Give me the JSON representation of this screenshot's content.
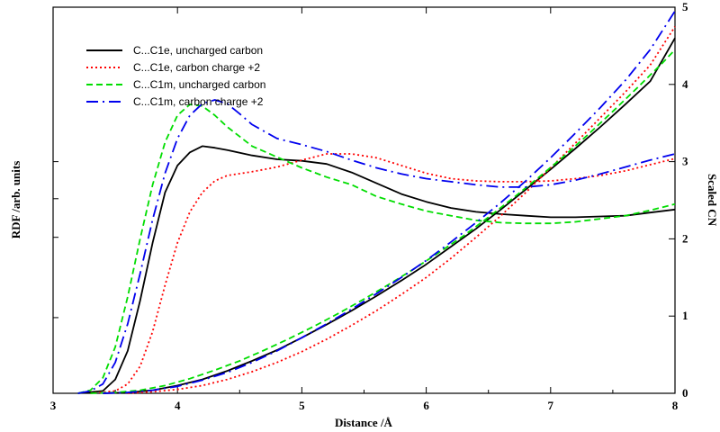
{
  "chart_data": {
    "type": "line",
    "xlabel": "Distance /Å",
    "ylabel": "RDF /arb. units",
    "y2label": "Scaled CN",
    "xlim": [
      3,
      8
    ],
    "ylim": [
      0,
      5
    ],
    "y2lim": [
      0,
      5
    ],
    "x_ticks": [
      "3",
      "4",
      "5",
      "6",
      "7",
      "8"
    ],
    "y2_ticks": [
      "0",
      "1",
      "2",
      "3",
      "4",
      "5"
    ],
    "grid": false,
    "legend_position": "top-left",
    "series": [
      {
        "name": "C...C1e, uncharged carbon",
        "color": "#000000",
        "dash": "solid",
        "rdf": [
          [
            3.2,
            0
          ],
          [
            3.4,
            0.03
          ],
          [
            3.5,
            0.18
          ],
          [
            3.6,
            0.55
          ],
          [
            3.7,
            1.2
          ],
          [
            3.8,
            1.95
          ],
          [
            3.9,
            2.6
          ],
          [
            4.0,
            2.95
          ],
          [
            4.1,
            3.12
          ],
          [
            4.2,
            3.2
          ],
          [
            4.3,
            3.18
          ],
          [
            4.4,
            3.15
          ],
          [
            4.6,
            3.08
          ],
          [
            4.8,
            3.03
          ],
          [
            5.0,
            3.01
          ],
          [
            5.2,
            2.97
          ],
          [
            5.4,
            2.86
          ],
          [
            5.6,
            2.72
          ],
          [
            5.8,
            2.58
          ],
          [
            6.0,
            2.48
          ],
          [
            6.2,
            2.4
          ],
          [
            6.4,
            2.35
          ],
          [
            6.6,
            2.32
          ],
          [
            6.8,
            2.3
          ],
          [
            7.0,
            2.28
          ],
          [
            7.2,
            2.28
          ],
          [
            7.4,
            2.29
          ],
          [
            7.6,
            2.3
          ],
          [
            7.8,
            2.34
          ],
          [
            8.0,
            2.38
          ]
        ],
        "cn": [
          [
            3.4,
            0
          ],
          [
            3.6,
            0.01
          ],
          [
            3.8,
            0.04
          ],
          [
            4.0,
            0.1
          ],
          [
            4.2,
            0.18
          ],
          [
            4.4,
            0.29
          ],
          [
            4.6,
            0.42
          ],
          [
            4.8,
            0.56
          ],
          [
            5.0,
            0.72
          ],
          [
            5.2,
            0.89
          ],
          [
            5.4,
            1.07
          ],
          [
            5.6,
            1.26
          ],
          [
            5.8,
            1.46
          ],
          [
            6.0,
            1.67
          ],
          [
            6.2,
            1.9
          ],
          [
            6.4,
            2.13
          ],
          [
            6.6,
            2.38
          ],
          [
            6.8,
            2.64
          ],
          [
            7.0,
            2.9
          ],
          [
            7.2,
            3.17
          ],
          [
            7.4,
            3.45
          ],
          [
            7.6,
            3.74
          ],
          [
            7.8,
            4.04
          ],
          [
            8.0,
            4.6
          ]
        ]
      },
      {
        "name": "C...C1e, carbon charge +2",
        "color": "#ff0000",
        "dash": "dotted",
        "rdf": [
          [
            3.3,
            0
          ],
          [
            3.5,
            0.03
          ],
          [
            3.6,
            0.12
          ],
          [
            3.7,
            0.35
          ],
          [
            3.8,
            0.8
          ],
          [
            3.9,
            1.4
          ],
          [
            4.0,
            1.95
          ],
          [
            4.1,
            2.35
          ],
          [
            4.2,
            2.6
          ],
          [
            4.3,
            2.75
          ],
          [
            4.4,
            2.82
          ],
          [
            4.6,
            2.87
          ],
          [
            4.8,
            2.93
          ],
          [
            5.0,
            3.02
          ],
          [
            5.2,
            3.1
          ],
          [
            5.4,
            3.1
          ],
          [
            5.6,
            3.05
          ],
          [
            5.8,
            2.95
          ],
          [
            6.0,
            2.85
          ],
          [
            6.2,
            2.78
          ],
          [
            6.4,
            2.75
          ],
          [
            6.6,
            2.74
          ],
          [
            6.8,
            2.74
          ],
          [
            7.0,
            2.75
          ],
          [
            7.2,
            2.78
          ],
          [
            7.4,
            2.82
          ],
          [
            7.6,
            2.88
          ],
          [
            7.8,
            2.96
          ],
          [
            8.0,
            3.04
          ]
        ],
        "cn": [
          [
            3.6,
            0
          ],
          [
            3.8,
            0.02
          ],
          [
            4.0,
            0.05
          ],
          [
            4.2,
            0.1
          ],
          [
            4.4,
            0.18
          ],
          [
            4.6,
            0.28
          ],
          [
            4.8,
            0.4
          ],
          [
            5.0,
            0.54
          ],
          [
            5.2,
            0.7
          ],
          [
            5.4,
            0.88
          ],
          [
            5.6,
            1.07
          ],
          [
            5.8,
            1.28
          ],
          [
            6.0,
            1.5
          ],
          [
            6.2,
            1.75
          ],
          [
            6.4,
            2.02
          ],
          [
            6.6,
            2.3
          ],
          [
            6.8,
            2.6
          ],
          [
            7.0,
            2.92
          ],
          [
            7.2,
            3.24
          ],
          [
            7.4,
            3.57
          ],
          [
            7.6,
            3.9
          ],
          [
            7.8,
            4.25
          ],
          [
            8.0,
            4.75
          ]
        ]
      },
      {
        "name": "C...C1m, uncharged carbon",
        "color": "#00dd00",
        "dash": "dashed",
        "rdf": [
          [
            3.2,
            0
          ],
          [
            3.3,
            0.04
          ],
          [
            3.4,
            0.2
          ],
          [
            3.5,
            0.6
          ],
          [
            3.6,
            1.25
          ],
          [
            3.7,
            2.0
          ],
          [
            3.8,
            2.7
          ],
          [
            3.9,
            3.25
          ],
          [
            4.0,
            3.6
          ],
          [
            4.1,
            3.74
          ],
          [
            4.2,
            3.72
          ],
          [
            4.3,
            3.6
          ],
          [
            4.4,
            3.45
          ],
          [
            4.6,
            3.2
          ],
          [
            4.8,
            3.06
          ],
          [
            5.0,
            2.92
          ],
          [
            5.2,
            2.8
          ],
          [
            5.4,
            2.7
          ],
          [
            5.6,
            2.55
          ],
          [
            5.8,
            2.45
          ],
          [
            6.0,
            2.36
          ],
          [
            6.2,
            2.3
          ],
          [
            6.4,
            2.24
          ],
          [
            6.6,
            2.21
          ],
          [
            6.8,
            2.2
          ],
          [
            7.0,
            2.2
          ],
          [
            7.2,
            2.22
          ],
          [
            7.4,
            2.26
          ],
          [
            7.6,
            2.3
          ],
          [
            7.8,
            2.37
          ],
          [
            8.0,
            2.45
          ]
        ],
        "cn": [
          [
            3.3,
            0
          ],
          [
            3.5,
            0.01
          ],
          [
            3.7,
            0.04
          ],
          [
            3.9,
            0.1
          ],
          [
            4.1,
            0.19
          ],
          [
            4.3,
            0.3
          ],
          [
            4.5,
            0.42
          ],
          [
            4.7,
            0.56
          ],
          [
            4.9,
            0.71
          ],
          [
            5.1,
            0.87
          ],
          [
            5.3,
            1.04
          ],
          [
            5.5,
            1.22
          ],
          [
            5.7,
            1.41
          ],
          [
            5.9,
            1.61
          ],
          [
            6.1,
            1.82
          ],
          [
            6.3,
            2.04
          ],
          [
            6.5,
            2.28
          ],
          [
            6.7,
            2.53
          ],
          [
            6.9,
            2.79
          ],
          [
            7.1,
            3.06
          ],
          [
            7.3,
            3.35
          ],
          [
            7.5,
            3.65
          ],
          [
            7.7,
            3.96
          ],
          [
            7.9,
            4.28
          ],
          [
            8.0,
            4.45
          ]
        ]
      },
      {
        "name": "C...C1m, carbon charge +2",
        "color": "#0000ee",
        "dash": "longdash",
        "rdf": [
          [
            3.2,
            0
          ],
          [
            3.3,
            0.03
          ],
          [
            3.4,
            0.12
          ],
          [
            3.5,
            0.4
          ],
          [
            3.6,
            0.9
          ],
          [
            3.7,
            1.55
          ],
          [
            3.8,
            2.25
          ],
          [
            3.9,
            2.85
          ],
          [
            4.0,
            3.3
          ],
          [
            4.1,
            3.6
          ],
          [
            4.2,
            3.75
          ],
          [
            4.3,
            3.8
          ],
          [
            4.4,
            3.75
          ],
          [
            4.5,
            3.62
          ],
          [
            4.6,
            3.48
          ],
          [
            4.8,
            3.3
          ],
          [
            5.0,
            3.22
          ],
          [
            5.2,
            3.13
          ],
          [
            5.4,
            3.02
          ],
          [
            5.6,
            2.92
          ],
          [
            5.8,
            2.84
          ],
          [
            6.0,
            2.78
          ],
          [
            6.2,
            2.74
          ],
          [
            6.4,
            2.7
          ],
          [
            6.6,
            2.67
          ],
          [
            6.8,
            2.67
          ],
          [
            7.0,
            2.7
          ],
          [
            7.2,
            2.76
          ],
          [
            7.4,
            2.84
          ],
          [
            7.6,
            2.93
          ],
          [
            7.8,
            3.02
          ],
          [
            8.0,
            3.1
          ]
        ],
        "cn": [
          [
            3.4,
            0
          ],
          [
            3.6,
            0.01
          ],
          [
            3.8,
            0.04
          ],
          [
            4.0,
            0.09
          ],
          [
            4.2,
            0.17
          ],
          [
            4.4,
            0.27
          ],
          [
            4.6,
            0.4
          ],
          [
            4.8,
            0.55
          ],
          [
            5.0,
            0.72
          ],
          [
            5.2,
            0.9
          ],
          [
            5.4,
            1.09
          ],
          [
            5.6,
            1.29
          ],
          [
            5.8,
            1.5
          ],
          [
            6.0,
            1.72
          ],
          [
            6.2,
            1.96
          ],
          [
            6.4,
            2.21
          ],
          [
            6.6,
            2.47
          ],
          [
            6.8,
            2.75
          ],
          [
            7.0,
            3.05
          ],
          [
            7.2,
            3.37
          ],
          [
            7.4,
            3.7
          ],
          [
            7.6,
            4.05
          ],
          [
            7.8,
            4.45
          ],
          [
            8.0,
            4.95
          ]
        ]
      }
    ]
  }
}
